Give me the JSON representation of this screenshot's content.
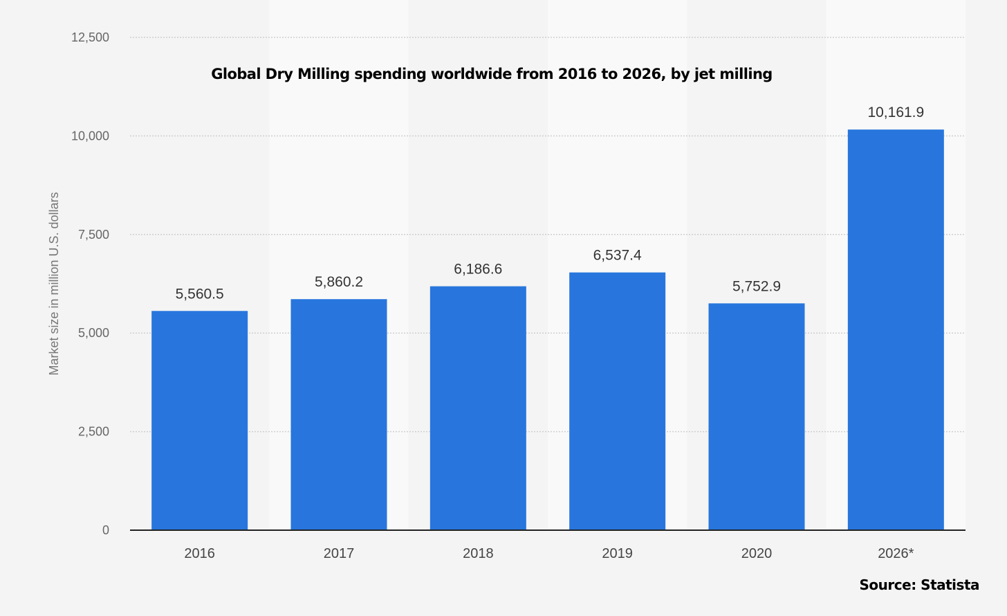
{
  "chart_data": {
    "type": "bar",
    "title": "Global Dry Milling spending worldwide from 2016 to 2026, by jet milling",
    "xlabel": "",
    "ylabel": "Market size in million U.S. dollars",
    "categories": [
      "2016",
      "2017",
      "2018",
      "2019",
      "2020",
      "2026*"
    ],
    "values": [
      5560.5,
      5860.2,
      6186.6,
      6537.4,
      5752.9,
      10161.9
    ],
    "data_labels": [
      "5,560.5",
      "5,860.2",
      "6,186.6",
      "6,537.4",
      "5,752.9",
      "10,161.9"
    ],
    "ylim": [
      0,
      12500
    ],
    "yticks": [
      0,
      2500,
      5000,
      7500,
      10000,
      12500
    ],
    "ytick_labels": [
      "0",
      "2,500",
      "5,000",
      "7,500",
      "10,000",
      "12,500"
    ],
    "grid": true,
    "bar_color": "#2876dd",
    "source": "Source: Statista"
  }
}
